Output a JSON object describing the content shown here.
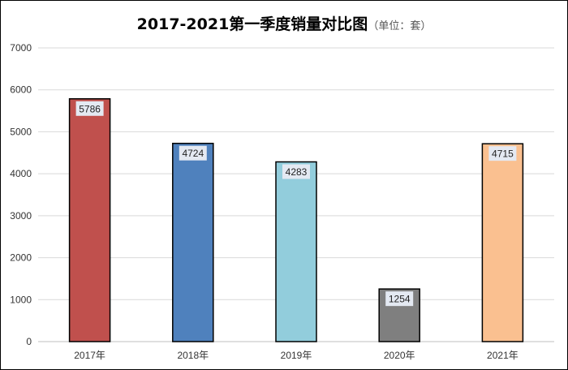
{
  "chart_data": {
    "type": "bar",
    "title": "2017-2021第一季度销量对比图",
    "subtitle": "（单位：套）",
    "xlabel": "",
    "ylabel": "",
    "categories": [
      "2017年",
      "2018年",
      "2019年",
      "2020年",
      "2021年"
    ],
    "values": [
      5786,
      4724,
      4283,
      1254,
      4715
    ],
    "bar_colors": [
      "#c0504d",
      "#4f81bd",
      "#92cddc",
      "#7f7f7f",
      "#fac090"
    ],
    "ylim": [
      0,
      7000
    ],
    "yticks": [
      0,
      1000,
      2000,
      3000,
      4000,
      5000,
      6000,
      7000
    ],
    "grid": true,
    "legend": "none",
    "data_labels": true,
    "gridline_color": "#d9d9d9",
    "label_box_color": "#e4e9f2"
  }
}
